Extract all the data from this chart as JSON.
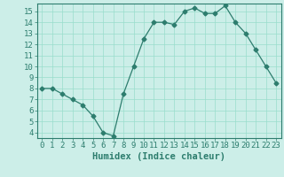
{
  "x": [
    0,
    1,
    2,
    3,
    4,
    5,
    6,
    7,
    8,
    9,
    10,
    11,
    12,
    13,
    14,
    15,
    16,
    17,
    18,
    19,
    20,
    21,
    22,
    23
  ],
  "y": [
    8,
    8,
    7.5,
    7,
    6.5,
    5.5,
    4,
    3.7,
    7.5,
    10,
    12.5,
    14,
    14,
    13.8,
    15,
    15.3,
    14.8,
    14.8,
    15.5,
    14,
    13,
    11.5,
    10,
    8.5
  ],
  "line_color": "#2d7d6e",
  "marker": "D",
  "marker_size": 2.5,
  "bg_color": "#cceee8",
  "grid_color": "#99ddcc",
  "tick_color": "#2d7d6e",
  "xlabel": "Humidex (Indice chaleur)",
  "ylim": [
    3.5,
    15.7
  ],
  "xlim": [
    -0.5,
    23.5
  ],
  "yticks": [
    4,
    5,
    6,
    7,
    8,
    9,
    10,
    11,
    12,
    13,
    14,
    15
  ],
  "xticks": [
    0,
    1,
    2,
    3,
    4,
    5,
    6,
    7,
    8,
    9,
    10,
    11,
    12,
    13,
    14,
    15,
    16,
    17,
    18,
    19,
    20,
    21,
    22,
    23
  ],
  "font_size": 6.5,
  "xlabel_fontsize": 7.5
}
